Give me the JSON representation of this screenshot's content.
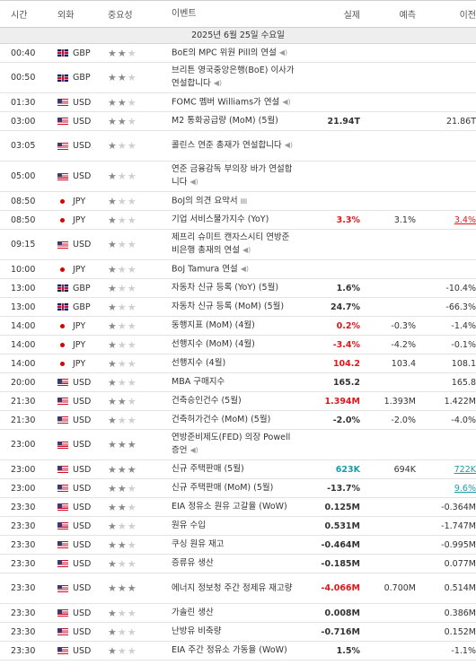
{
  "header": {
    "time": "시간",
    "currency": "외화",
    "importance": "중요성",
    "event": "이벤트",
    "actual": "실제",
    "forecast": "예측",
    "previous": "이전"
  },
  "date_label": "2025년 6월 25일 수요일",
  "events": [
    {
      "time": "00:40",
      "flag": "gb",
      "cur": "GBP",
      "stars": 2,
      "event": "BoE의 MPC 위원 Pill의 연설",
      "icon": "speaker-icon",
      "actual": "",
      "forecast": "",
      "previous": ""
    },
    {
      "time": "00:50",
      "flag": "gb",
      "cur": "GBP",
      "stars": 2,
      "event": "브리튼 영국중앙은행(BoE) 이사가 연설합니다",
      "icon": "speaker-icon",
      "actual": "",
      "forecast": "",
      "previous": ""
    },
    {
      "time": "01:30",
      "flag": "us",
      "cur": "USD",
      "stars": 2,
      "event": "FOMC 멤버 Williams가 연설",
      "icon": "speaker-icon",
      "actual": "",
      "forecast": "",
      "previous": ""
    },
    {
      "time": "03:00",
      "flag": "us",
      "cur": "USD",
      "stars": 2,
      "event": "M2 통화공급량 (MoM) (5월)",
      "icon": "",
      "actual": "21.94T",
      "forecast": "",
      "previous": "21.86T"
    },
    {
      "time": "03:05",
      "flag": "us",
      "cur": "USD",
      "stars": 1,
      "event": "콜린스 연준 총재가 연설합니다",
      "icon": "speaker-icon",
      "actual": "",
      "forecast": "",
      "previous": ""
    },
    {
      "time": "05:00",
      "flag": "us",
      "cur": "USD",
      "stars": 1,
      "event": "연준 금융감독 부의장 바가 연설합니다",
      "icon": "speaker-icon",
      "actual": "",
      "forecast": "",
      "previous": ""
    },
    {
      "time": "08:50",
      "flag": "jp",
      "cur": "JPY",
      "stars": 1,
      "event": "BoJ의 의견 요약서",
      "icon": "document-icon",
      "actual": "",
      "forecast": "",
      "previous": ""
    },
    {
      "time": "08:50",
      "flag": "jp",
      "cur": "JPY",
      "stars": 1,
      "event": "기업 서비스물가지수 (YoY)",
      "icon": "",
      "actual": "3.3%",
      "actual_color": "red",
      "forecast": "3.1%",
      "previous": "3.4%",
      "previous_color": "red",
      "previous_underline": true
    },
    {
      "time": "09:15",
      "flag": "us",
      "cur": "USD",
      "stars": 1,
      "event": "제프리 슈미트 캔자스시티 연방준비은행 총재의 연설",
      "icon": "speaker-icon",
      "actual": "",
      "forecast": "",
      "previous": ""
    },
    {
      "time": "10:00",
      "flag": "jp",
      "cur": "JPY",
      "stars": 1,
      "event": "BoJ Tamura 연설",
      "icon": "speaker-icon",
      "actual": "",
      "forecast": "",
      "previous": ""
    },
    {
      "time": "13:00",
      "flag": "gb",
      "cur": "GBP",
      "stars": 1,
      "event": "자동차 신규 등록 (YoY) (5월)",
      "icon": "",
      "actual": "1.6%",
      "forecast": "",
      "previous": "-10.4%"
    },
    {
      "time": "13:00",
      "flag": "gb",
      "cur": "GBP",
      "stars": 1,
      "event": "자동차 신규 등록 (MoM) (5월)",
      "icon": "",
      "actual": "24.7%",
      "forecast": "",
      "previous": "-66.3%"
    },
    {
      "time": "14:00",
      "flag": "jp",
      "cur": "JPY",
      "stars": 1,
      "event": "동행지표 (MoM) (4월)",
      "icon": "",
      "actual": "0.2%",
      "actual_color": "red",
      "forecast": "-0.3%",
      "previous": "-1.4%"
    },
    {
      "time": "14:00",
      "flag": "jp",
      "cur": "JPY",
      "stars": 1,
      "event": "선행지수 (MoM) (4월)",
      "icon": "",
      "actual": "-3.4%",
      "actual_color": "red",
      "forecast": "-4.2%",
      "previous": "-0.1%"
    },
    {
      "time": "14:00",
      "flag": "jp",
      "cur": "JPY",
      "stars": 1,
      "event": "선행지수 (4월)",
      "icon": "",
      "actual": "104.2",
      "actual_color": "red",
      "forecast": "103.4",
      "previous": "108.1"
    },
    {
      "time": "20:00",
      "flag": "us",
      "cur": "USD",
      "stars": 1,
      "event": "MBA 구매지수",
      "icon": "",
      "actual": "165.2",
      "forecast": "",
      "previous": "165.8"
    },
    {
      "time": "21:30",
      "flag": "us",
      "cur": "USD",
      "stars": 2,
      "event": "건축승인건수 (5월)",
      "icon": "",
      "actual": "1.394M",
      "actual_color": "red",
      "forecast": "1.393M",
      "previous": "1.422M"
    },
    {
      "time": "21:30",
      "flag": "us",
      "cur": "USD",
      "stars": 1,
      "event": "건축허가건수 (MoM) (5월)",
      "icon": "",
      "actual": "-2.0%",
      "forecast": "-2.0%",
      "previous": "-4.0%"
    },
    {
      "time": "23:00",
      "flag": "us",
      "cur": "USD",
      "stars": 3,
      "event": "연방준비제도(FED) 의장 Powell 증언",
      "icon": "speaker-icon",
      "actual": "",
      "forecast": "",
      "previous": ""
    },
    {
      "time": "23:00",
      "flag": "us",
      "cur": "USD",
      "stars": 3,
      "event": "신규 주택판매 (5월)",
      "icon": "",
      "actual": "623K",
      "actual_color": "green",
      "forecast": "694K",
      "previous": "722K",
      "previous_color": "green",
      "previous_underline": true,
      "previous_normal": true
    },
    {
      "time": "23:00",
      "flag": "us",
      "cur": "USD",
      "stars": 2,
      "event": "신규 주택판매 (MoM) (5월)",
      "icon": "",
      "actual": "-13.7%",
      "forecast": "",
      "previous": "9.6%",
      "previous_color": "green",
      "previous_underline": true,
      "previous_normal": true
    },
    {
      "time": "23:30",
      "flag": "us",
      "cur": "USD",
      "stars": 2,
      "event": "EIA 정유소 원유 고갈율 (WoW)",
      "icon": "",
      "actual": "0.125M",
      "forecast": "",
      "previous": "-0.364M"
    },
    {
      "time": "23:30",
      "flag": "us",
      "cur": "USD",
      "stars": 1,
      "event": "원유 수입",
      "icon": "",
      "actual": "0.531M",
      "forecast": "",
      "previous": "-1.747M"
    },
    {
      "time": "23:30",
      "flag": "us",
      "cur": "USD",
      "stars": 2,
      "event": "쿠싱 원유 재고",
      "icon": "",
      "actual": "-0.464M",
      "forecast": "",
      "previous": "-0.995M"
    },
    {
      "time": "23:30",
      "flag": "us",
      "cur": "USD",
      "stars": 1,
      "event": "증류유 생산",
      "icon": "",
      "actual": "-0.185M",
      "forecast": "",
      "previous": "0.077M"
    },
    {
      "time": "23:30",
      "flag": "us",
      "cur": "USD",
      "stars": 3,
      "event": "에너지 정보청 주간 정제유 재고량",
      "icon": "",
      "actual": "-4.066M",
      "actual_color": "red",
      "forecast": "0.700M",
      "previous": "0.514M"
    },
    {
      "time": "23:30",
      "flag": "us",
      "cur": "USD",
      "stars": 1,
      "event": "가솔린 생산",
      "icon": "",
      "actual": "0.008M",
      "forecast": "",
      "previous": "0.386M"
    },
    {
      "time": "23:30",
      "flag": "us",
      "cur": "USD",
      "stars": 1,
      "event": "난방유 비축량",
      "icon": "",
      "actual": "-0.716M",
      "forecast": "",
      "previous": "0.152M"
    },
    {
      "time": "23:30",
      "flag": "us",
      "cur": "USD",
      "stars": 1,
      "event": "EIA 주간 정유소 가동율 (WoW)",
      "icon": "",
      "actual": "1.5%",
      "forecast": "",
      "previous": "-1.1%"
    }
  ]
}
